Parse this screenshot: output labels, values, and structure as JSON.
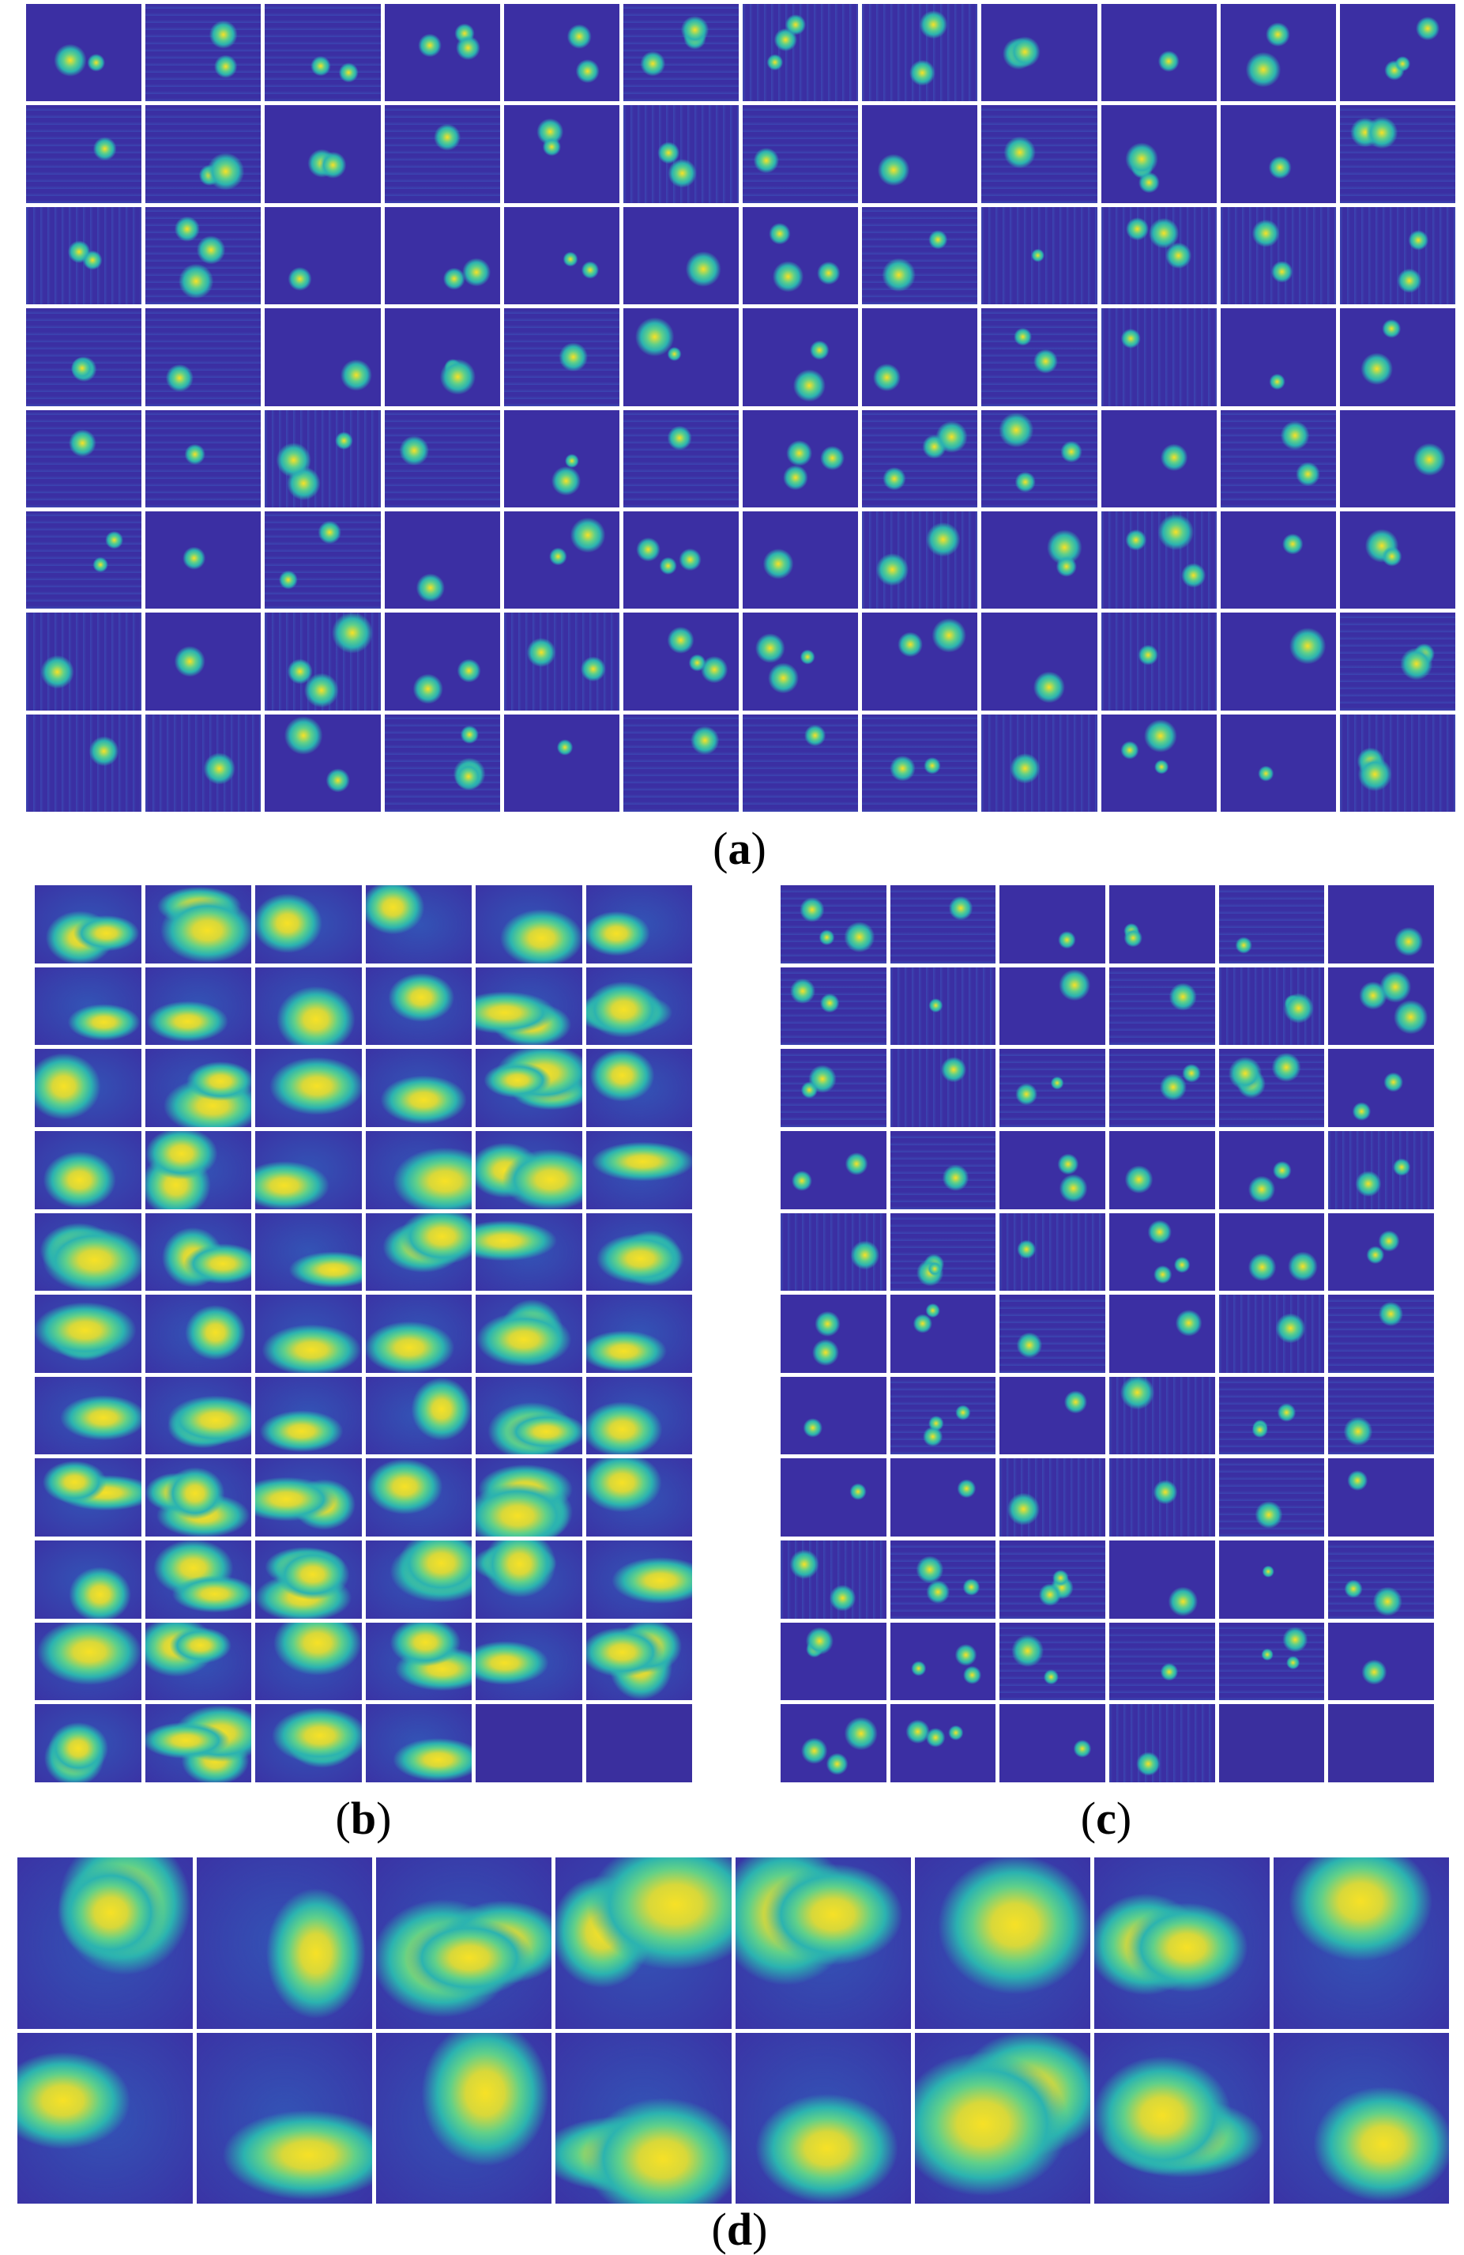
{
  "colors": {
    "background": "#3a2f9e",
    "low": "#3b2fa3",
    "mid": "#2bb3b0",
    "green": "#5fd08a",
    "high": "#f7e126",
    "gridline": "#ffffff"
  },
  "panels": {
    "a": {
      "caption_open": "(",
      "caption_letter": "a",
      "caption_close": ")",
      "rows": 8,
      "cols": 12,
      "empty_cells": 0
    },
    "b": {
      "caption_open": "(",
      "caption_letter": "b",
      "caption_close": ")",
      "rows": 11,
      "cols": 6,
      "empty_cells": 2
    },
    "c": {
      "caption_open": "(",
      "caption_letter": "c",
      "caption_close": ")",
      "rows": 11,
      "cols": 6,
      "empty_cells": 2
    },
    "d": {
      "caption_open": "(",
      "caption_letter": "d",
      "caption_close": ")",
      "rows": 2,
      "cols": 8,
      "empty_cells": 0
    }
  }
}
